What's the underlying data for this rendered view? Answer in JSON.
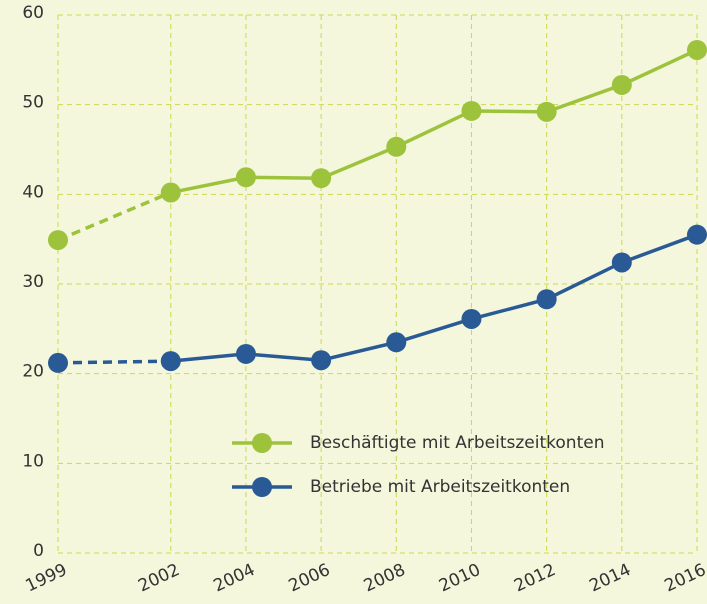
{
  "chart_data": {
    "type": "line",
    "x": [
      1999,
      2002,
      2004,
      2006,
      2008,
      2010,
      2012,
      2014,
      2016
    ],
    "series": [
      {
        "name": "Beschäftigte mit Arbeitszeitkonten",
        "color": "#9cc33b",
        "dash_first_segment": true,
        "values": [
          34.9,
          40.2,
          41.9,
          41.8,
          45.3,
          49.3,
          49.2,
          52.2,
          56.1
        ]
      },
      {
        "name": "Betriebe mit Arbeitszeitkonten",
        "color": "#2a5a96",
        "dash_first_segment": true,
        "values": [
          21.2,
          21.4,
          22.2,
          21.5,
          23.5,
          26.1,
          28.3,
          32.4,
          35.5
        ]
      }
    ],
    "xlim": [
      1999,
      2016
    ],
    "xticks": [
      1999,
      2002,
      2004,
      2006,
      2008,
      2010,
      2012,
      2014,
      2016
    ],
    "ylim": [
      0,
      60
    ],
    "yticks": [
      0,
      10,
      20,
      30,
      40,
      50,
      60
    ],
    "grid": true,
    "legend": "lower right"
  }
}
